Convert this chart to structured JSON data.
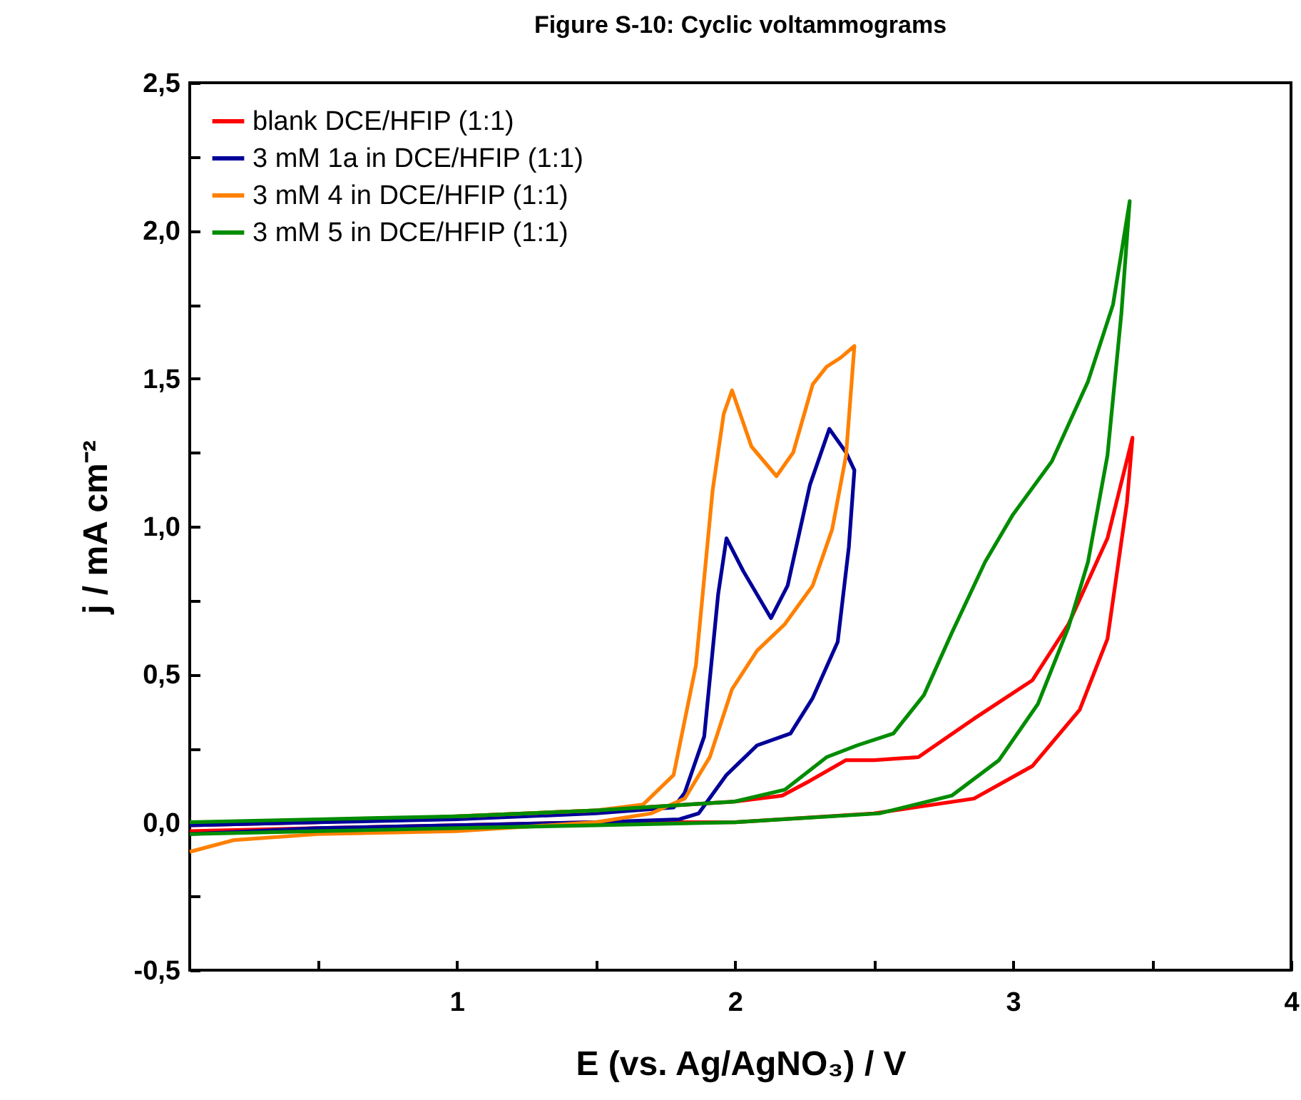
{
  "chart_data": {
    "type": "line",
    "title": "Figure S-10: Cyclic voltammograms",
    "xlabel": "E (vs. Ag/AgNO₃) / V",
    "ylabel": "j / mA cm⁻²",
    "xlim": [
      0.04,
      4
    ],
    "ylim": [
      -0.5,
      2.5
    ],
    "xticks": [
      {
        "value": 0.5,
        "label": null
      },
      1,
      {
        "value": 1.5,
        "label": null
      },
      2,
      {
        "value": 2.5,
        "label": null
      },
      3,
      {
        "value": 3.5,
        "label": null
      },
      4
    ],
    "yticks": [
      {
        "value": -0.5,
        "label": "-0,5"
      },
      {
        "value": -0.25,
        "label": null
      },
      {
        "value": 0,
        "label": "0,0"
      },
      {
        "value": 0.25,
        "label": null
      },
      {
        "value": 0.5,
        "label": "0,5"
      },
      {
        "value": 0.75,
        "label": null
      },
      {
        "value": 1,
        "label": "1,0"
      },
      {
        "value": 1.25,
        "label": null
      },
      {
        "value": 1.5,
        "label": "1,5"
      },
      {
        "value": 1.75,
        "label": null
      },
      {
        "value": 2,
        "label": "2,0"
      },
      {
        "value": 2.25,
        "label": null
      },
      {
        "value": 2.5,
        "label": "2,5"
      }
    ],
    "grid": false,
    "legend": "top left",
    "marker": "none",
    "line_style": "solid",
    "series": [
      {
        "name": "blank DCE/HFIP (1:1)",
        "color": "#ff0000",
        "x": [
          0.04,
          0.5,
          1,
          1.5,
          2,
          2.5,
          2.86,
          3.07,
          3.24,
          3.34,
          3.41,
          3.43,
          3.34,
          3.2,
          3.07,
          2.86,
          2.66,
          2.5,
          2.4,
          2.27,
          2.17,
          2,
          1.5,
          1,
          0.5,
          0.04
        ],
        "values": [
          -0.03,
          -0.02,
          -0.01,
          0,
          0,
          0.03,
          0.08,
          0.19,
          0.38,
          0.62,
          1.08,
          1.3,
          0.96,
          0.67,
          0.48,
          0.35,
          0.22,
          0.21,
          0.21,
          0.14,
          0.09,
          0.07,
          0.04,
          0.02,
          0,
          -0.01
        ]
      },
      {
        "name": "3 mM 1a in DCE/HFIP (1:1)",
        "color": "#000099",
        "x": [
          0.04,
          0.5,
          1,
          1.5,
          1.78,
          1.82,
          1.89,
          1.94,
          1.97,
          2.03,
          2.13,
          2.19,
          2.27,
          2.34,
          2.4,
          2.43,
          2.41,
          2.37,
          2.28,
          2.2,
          2.08,
          1.97,
          1.87,
          1.8,
          1.5,
          1,
          0.5,
          0.04
        ],
        "values": [
          -0.01,
          0,
          0.01,
          0.03,
          0.05,
          0.1,
          0.29,
          0.77,
          0.96,
          0.85,
          0.69,
          0.8,
          1.14,
          1.33,
          1.25,
          1.19,
          0.93,
          0.61,
          0.42,
          0.3,
          0.26,
          0.16,
          0.03,
          0.01,
          0,
          -0.01,
          -0.02,
          -0.04
        ]
      },
      {
        "name": "3 mM 4 in DCE/HFIP (1:1)",
        "color": "#ff8000",
        "x": [
          1,
          1.5,
          1.67,
          1.78,
          1.86,
          1.92,
          1.96,
          1.99,
          2.06,
          2.15,
          2.21,
          2.28,
          2.33,
          2.38,
          2.43,
          2.4,
          2.35,
          2.28,
          2.18,
          2.08,
          1.99,
          1.91,
          1.82,
          1.7,
          1.5,
          1,
          0.5,
          0.2,
          0.04
        ],
        "values": [
          0.02,
          0.04,
          0.06,
          0.16,
          0.53,
          1.12,
          1.38,
          1.46,
          1.27,
          1.17,
          1.25,
          1.48,
          1.54,
          1.57,
          1.61,
          1.24,
          0.99,
          0.8,
          0.67,
          0.58,
          0.45,
          0.22,
          0.08,
          0.03,
          0,
          -0.03,
          -0.04,
          -0.06,
          -0.1
        ]
      },
      {
        "name": "3 mM 5 in DCE/HFIP (1:1)",
        "color": "#008c00",
        "x": [
          0.04,
          0.5,
          1,
          1.5,
          2,
          2.52,
          2.78,
          2.95,
          3.09,
          3.2,
          3.27,
          3.34,
          3.39,
          3.42,
          3.36,
          3.27,
          3.14,
          3,
          2.9,
          2.78,
          2.68,
          2.57,
          2.44,
          2.33,
          2.18,
          2,
          1.5,
          1,
          0.5,
          0.04
        ],
        "values": [
          -0.04,
          -0.03,
          -0.02,
          -0.01,
          0,
          0.03,
          0.09,
          0.21,
          0.4,
          0.66,
          0.88,
          1.24,
          1.72,
          2.1,
          1.75,
          1.49,
          1.22,
          1.04,
          0.88,
          0.64,
          0.43,
          0.3,
          0.26,
          0.22,
          0.11,
          0.07,
          0.04,
          0.02,
          0.01,
          0
        ]
      }
    ]
  }
}
